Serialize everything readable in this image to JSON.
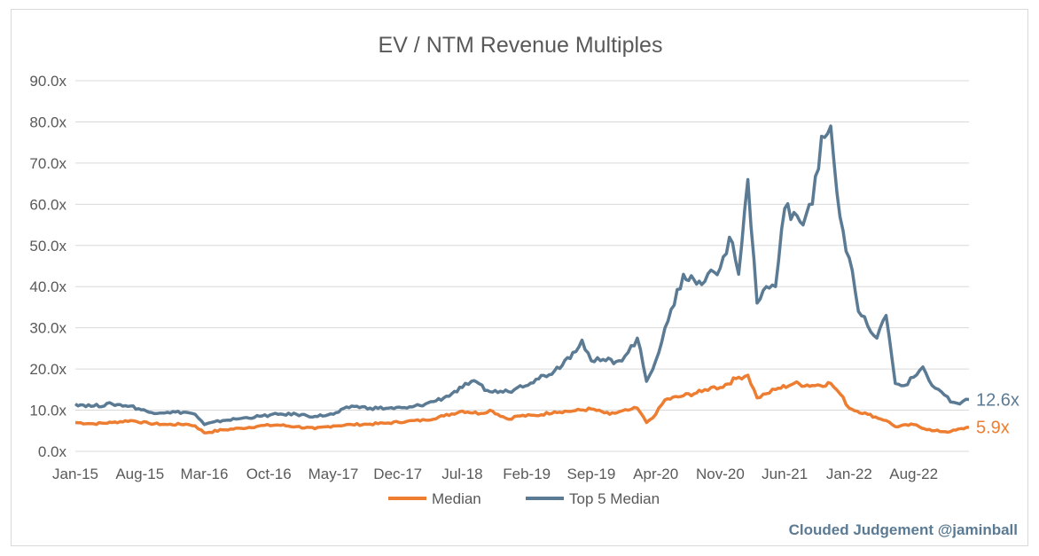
{
  "chart_data": {
    "type": "line",
    "title": "EV / NTM Revenue Multiples",
    "xlabel": "",
    "ylabel": "",
    "ylim": [
      0,
      90
    ],
    "y_ticks": [
      "0.0x",
      "10.0x",
      "20.0x",
      "30.0x",
      "40.0x",
      "50.0x",
      "60.0x",
      "70.0x",
      "80.0x",
      "90.0x"
    ],
    "x_range": [
      "2015-01",
      "2023-02"
    ],
    "x_ticks": [
      "Jan-15",
      "Aug-15",
      "Mar-16",
      "Oct-16",
      "May-17",
      "Dec-17",
      "Jul-18",
      "Feb-19",
      "Sep-19",
      "Apr-20",
      "Nov-20",
      "Jun-21",
      "Jan-22",
      "Aug-22"
    ],
    "grid": true,
    "legend_position": "bottom",
    "series": [
      {
        "name": "Median",
        "color": "#ED7D31",
        "end_label": "5.9x",
        "x": [
          "2015-01",
          "2015-03",
          "2015-05",
          "2015-07",
          "2015-09",
          "2015-11",
          "2016-01",
          "2016-02",
          "2016-03",
          "2016-05",
          "2016-07",
          "2016-09",
          "2016-11",
          "2017-01",
          "2017-03",
          "2017-05",
          "2017-07",
          "2017-09",
          "2017-11",
          "2018-01",
          "2018-03",
          "2018-05",
          "2018-07",
          "2018-09",
          "2018-10",
          "2018-12",
          "2019-01",
          "2019-03",
          "2019-05",
          "2019-07",
          "2019-09",
          "2019-11",
          "2020-01",
          "2020-02",
          "2020-03",
          "2020-04",
          "2020-05",
          "2020-07",
          "2020-09",
          "2020-10",
          "2020-11",
          "2021-01",
          "2021-02",
          "2021-03",
          "2021-04",
          "2021-05",
          "2021-07",
          "2021-09",
          "2021-11",
          "2021-12",
          "2022-01",
          "2022-03",
          "2022-05",
          "2022-06",
          "2022-08",
          "2022-10",
          "2022-12",
          "2023-02"
        ],
        "values": [
          7.0,
          6.7,
          7.0,
          7.5,
          6.8,
          6.5,
          6.6,
          6.2,
          4.5,
          5.2,
          5.6,
          6.2,
          6.4,
          6.0,
          5.5,
          6.2,
          6.5,
          6.6,
          6.9,
          7.3,
          7.6,
          8.6,
          9.8,
          9.2,
          10.0,
          7.8,
          8.6,
          8.7,
          9.6,
          9.8,
          10.3,
          9.0,
          10.0,
          10.5,
          7.0,
          9.0,
          12.5,
          13.5,
          14.5,
          15.5,
          15.5,
          18.0,
          18.5,
          13.0,
          14.0,
          15.0,
          16.5,
          16.0,
          16.5,
          14.0,
          10.5,
          9.0,
          7.5,
          6.0,
          6.5,
          5.0,
          4.8,
          5.9
        ]
      },
      {
        "name": "Top 5 Median",
        "color": "#5B7A93",
        "end_label": "12.6x",
        "x": [
          "2015-01",
          "2015-03",
          "2015-05",
          "2015-07",
          "2015-09",
          "2015-11",
          "2016-01",
          "2016-02",
          "2016-03",
          "2016-05",
          "2016-07",
          "2016-09",
          "2016-11",
          "2017-01",
          "2017-03",
          "2017-05",
          "2017-07",
          "2017-09",
          "2017-11",
          "2018-01",
          "2018-03",
          "2018-05",
          "2018-07",
          "2018-08",
          "2018-10",
          "2018-12",
          "2019-01",
          "2019-03",
          "2019-05",
          "2019-07",
          "2019-08",
          "2019-09",
          "2019-10",
          "2019-12",
          "2020-01",
          "2020-02",
          "2020-03",
          "2020-04",
          "2020-05",
          "2020-06",
          "2020-07",
          "2020-09",
          "2020-10",
          "2020-11",
          "2020-12",
          "2021-01",
          "2021-02",
          "2021-03",
          "2021-04",
          "2021-05",
          "2021-06",
          "2021-07",
          "2021-08",
          "2021-09",
          "2021-10",
          "2021-11",
          "2021-12",
          "2022-01",
          "2022-02",
          "2022-03",
          "2022-04",
          "2022-05",
          "2022-06",
          "2022-07",
          "2022-08",
          "2022-09",
          "2022-10",
          "2022-11",
          "2022-12",
          "2023-01",
          "2023-02"
        ],
        "values": [
          11.5,
          11.0,
          11.5,
          11.0,
          9.5,
          9.5,
          9.5,
          9.0,
          6.5,
          7.5,
          8.0,
          8.5,
          9.0,
          9.0,
          8.5,
          9.0,
          11.0,
          10.5,
          10.5,
          10.5,
          11.5,
          13.0,
          15.5,
          17.0,
          14.5,
          14.5,
          15.5,
          17.5,
          19.5,
          24.0,
          27.0,
          22.0,
          22.0,
          22.0,
          24.0,
          27.5,
          17.0,
          22.0,
          30.0,
          35.5,
          43.0,
          40.5,
          44.0,
          44.5,
          52.0,
          43.0,
          66.0,
          36.0,
          40.0,
          40.0,
          59.0,
          58.0,
          55.0,
          60.0,
          76.5,
          79.0,
          57.0,
          47.0,
          34.0,
          30.5,
          27.5,
          33.0,
          16.5,
          16.0,
          18.0,
          20.5,
          16.0,
          14.5,
          12.0,
          11.5,
          12.6
        ]
      }
    ]
  },
  "credit": "Clouded Judgement @jaminball"
}
